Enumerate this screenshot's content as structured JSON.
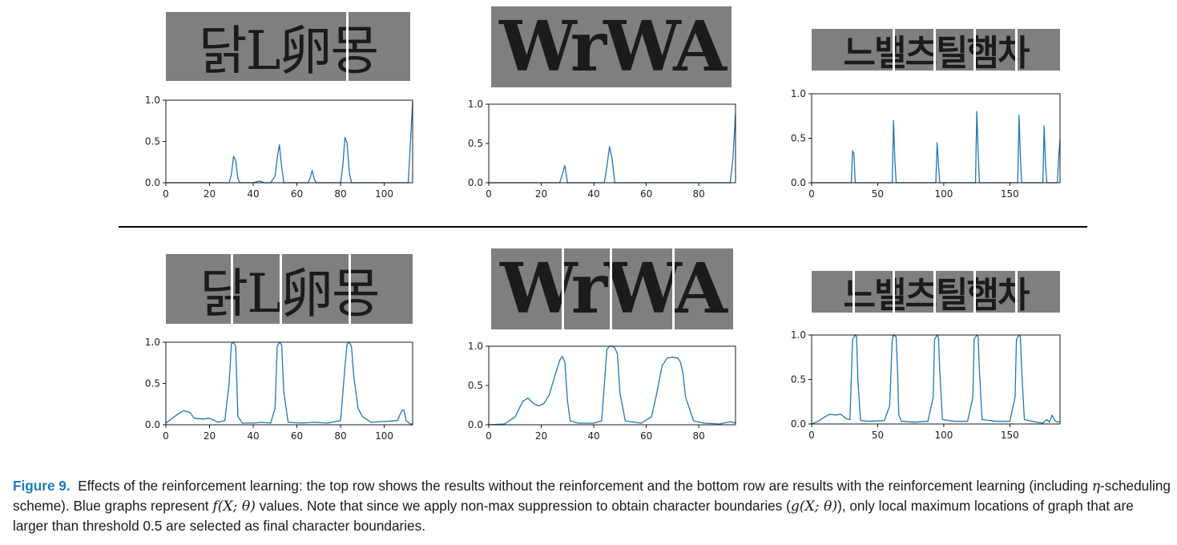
{
  "figure": {
    "caption": {
      "label": "Figure 9.",
      "part1": "Effects of the reinforcement learning: the top row shows the results without the reinforcement and the bottom row are results with the reinforcement learning (including ",
      "eta": "η",
      "part2": "-scheduling scheme). Blue graphs represent ",
      "f_expr": "f(X; θ)",
      "part3": " values. Note that since we apply non-max suppression to obtain character boundaries (",
      "g_expr": "g(X; θ)",
      "part4": "), only local maximum locations of graph that are larger than threshold 0.5 are selected as final character boundaries."
    },
    "images": [
      {
        "text": "닭L卵몽"
      },
      {
        "text": "WrWA"
      },
      {
        "text": "느밸츠틸햄차"
      },
      {
        "text": "닭L卵몽"
      },
      {
        "text": "WrWA"
      },
      {
        "text": "느밸츠틸햄차"
      }
    ],
    "line_color": "#1f77b4"
  },
  "chart_data": [
    {
      "type": "line",
      "row": "top",
      "xlim": [
        0,
        113
      ],
      "ylim": [
        0,
        1.0
      ],
      "xticks": [
        0,
        20,
        40,
        60,
        80,
        100
      ],
      "yticks": [
        0.0,
        0.5,
        1.0
      ],
      "x": [
        0,
        29,
        30,
        31,
        32,
        33,
        34,
        40,
        43,
        45,
        48,
        50,
        51,
        52,
        53,
        54,
        65,
        66,
        67,
        68,
        69,
        80,
        81,
        82,
        83,
        84,
        85,
        110,
        111,
        112,
        113
      ],
      "values": [
        0.0,
        0.0,
        0.1,
        0.32,
        0.27,
        0.05,
        0.0,
        0.0,
        0.02,
        0.0,
        0.0,
        0.08,
        0.3,
        0.46,
        0.2,
        0.0,
        0.0,
        0.05,
        0.15,
        0.04,
        0.0,
        0.0,
        0.2,
        0.55,
        0.48,
        0.12,
        0.0,
        0.0,
        0.0,
        0.5,
        0.98
      ]
    },
    {
      "type": "line",
      "row": "top",
      "xlim": [
        0,
        94
      ],
      "ylim": [
        0,
        1.0
      ],
      "xticks": [
        0,
        20,
        40,
        60,
        80
      ],
      "yticks": [
        0.0,
        0.5,
        1.0
      ],
      "x": [
        0,
        27,
        28,
        29,
        30,
        44,
        45,
        46,
        47,
        48,
        92,
        93,
        94
      ],
      "values": [
        0.0,
        0.0,
        0.1,
        0.22,
        0.0,
        0.0,
        0.2,
        0.46,
        0.3,
        0.0,
        0.0,
        0.3,
        0.88
      ]
    },
    {
      "type": "line",
      "row": "top",
      "xlim": [
        0,
        188
      ],
      "ylim": [
        0,
        1.0
      ],
      "xticks": [
        0,
        50,
        100,
        150
      ],
      "yticks": [
        0.0,
        0.5,
        1.0
      ],
      "x": [
        0,
        30,
        31,
        32,
        33,
        61,
        62,
        63,
        64,
        94,
        95,
        96,
        97,
        124,
        125,
        126,
        127,
        156,
        157,
        158,
        159,
        175,
        176,
        177,
        178,
        186,
        187,
        188
      ],
      "values": [
        0.0,
        0.0,
        0.36,
        0.32,
        0.0,
        0.0,
        0.7,
        0.25,
        0.0,
        0.0,
        0.45,
        0.2,
        0.0,
        0.0,
        0.8,
        0.35,
        0.0,
        0.0,
        0.76,
        0.3,
        0.0,
        0.0,
        0.64,
        0.2,
        0.0,
        0.0,
        0.3,
        0.48
      ]
    },
    {
      "type": "line",
      "row": "bottom",
      "xlim": [
        0,
        113
      ],
      "ylim": [
        0,
        1.0
      ],
      "xticks": [
        0,
        20,
        40,
        60,
        80,
        100
      ],
      "yticks": [
        0.0,
        0.5,
        1.0
      ],
      "x": [
        0,
        3,
        5,
        8,
        11,
        13,
        17,
        20,
        24,
        27,
        29,
        30,
        31,
        32,
        33,
        35,
        40,
        44,
        48,
        50,
        51,
        52,
        53,
        54,
        56,
        62,
        68,
        74,
        80,
        82,
        83,
        84,
        85,
        86,
        88,
        90,
        94,
        100,
        106,
        108,
        109,
        110,
        112,
        113
      ],
      "values": [
        0.02,
        0.08,
        0.12,
        0.17,
        0.15,
        0.08,
        0.07,
        0.08,
        0.03,
        0.05,
        0.5,
        0.98,
        1.0,
        0.95,
        0.1,
        0.02,
        0.02,
        0.03,
        0.02,
        0.2,
        0.95,
        1.0,
        0.97,
        0.4,
        0.03,
        0.02,
        0.03,
        0.02,
        0.05,
        0.7,
        0.98,
        1.0,
        0.95,
        0.6,
        0.2,
        0.1,
        0.03,
        0.04,
        0.05,
        0.17,
        0.18,
        0.05,
        0.01,
        0.01
      ]
    },
    {
      "type": "line",
      "row": "bottom",
      "xlim": [
        0,
        94
      ],
      "ylim": [
        0,
        1.0
      ],
      "xticks": [
        0,
        20,
        40,
        60,
        80
      ],
      "yticks": [
        0.0,
        0.5,
        1.0
      ],
      "x": [
        0,
        6,
        10,
        13,
        15,
        17,
        19,
        21,
        23,
        25,
        27,
        28,
        29,
        30,
        31,
        34,
        40,
        43,
        44,
        45,
        46,
        47,
        48,
        49,
        50,
        52,
        58,
        62,
        64,
        66,
        68,
        70,
        72,
        73,
        74,
        75,
        78,
        82,
        88,
        92,
        94
      ],
      "values": [
        0.0,
        0.01,
        0.1,
        0.3,
        0.34,
        0.27,
        0.24,
        0.27,
        0.38,
        0.6,
        0.82,
        0.87,
        0.8,
        0.3,
        0.05,
        0.02,
        0.02,
        0.05,
        0.5,
        0.96,
        1.0,
        1.0,
        0.98,
        0.9,
        0.4,
        0.05,
        0.02,
        0.1,
        0.4,
        0.75,
        0.85,
        0.86,
        0.85,
        0.8,
        0.65,
        0.35,
        0.05,
        0.02,
        0.01,
        0.04,
        0.02
      ]
    },
    {
      "type": "line",
      "row": "bottom",
      "xlim": [
        0,
        188
      ],
      "ylim": [
        0,
        1.0
      ],
      "xticks": [
        0,
        50,
        100,
        150
      ],
      "yticks": [
        0.0,
        0.5,
        1.0
      ],
      "x": [
        0,
        5,
        10,
        14,
        18,
        22,
        26,
        29,
        30,
        31,
        33,
        34,
        35,
        37,
        45,
        55,
        59,
        61,
        62,
        64,
        65,
        66,
        68,
        78,
        88,
        92,
        93,
        95,
        96,
        97,
        99,
        108,
        118,
        122,
        123,
        125,
        126,
        127,
        129,
        140,
        150,
        154,
        155,
        157,
        158,
        159,
        161,
        170,
        175,
        178,
        180,
        182,
        184,
        186,
        188
      ],
      "values": [
        0.0,
        0.03,
        0.08,
        0.11,
        0.1,
        0.11,
        0.06,
        0.05,
        0.5,
        0.95,
        1.0,
        0.98,
        0.5,
        0.04,
        0.03,
        0.04,
        0.2,
        0.95,
        1.0,
        0.98,
        0.6,
        0.1,
        0.03,
        0.02,
        0.03,
        0.3,
        0.95,
        1.0,
        0.97,
        0.6,
        0.05,
        0.03,
        0.03,
        0.3,
        0.95,
        1.0,
        0.98,
        0.6,
        0.05,
        0.03,
        0.03,
        0.3,
        0.95,
        1.0,
        0.98,
        0.6,
        0.05,
        0.02,
        0.01,
        0.05,
        0.02,
        0.1,
        0.04,
        0.02,
        0.03
      ]
    }
  ]
}
